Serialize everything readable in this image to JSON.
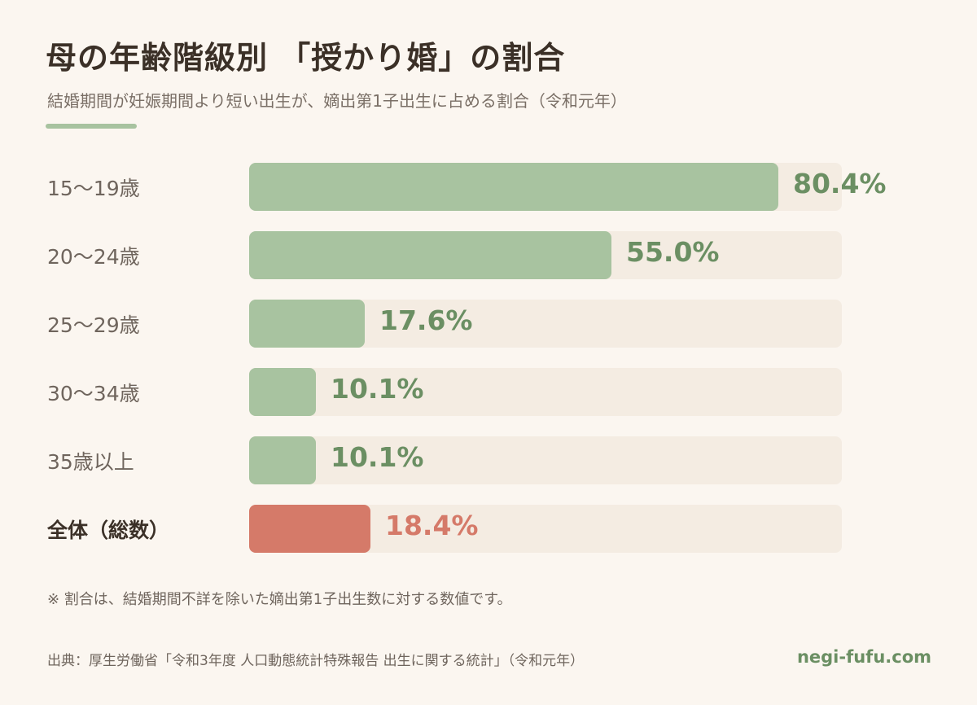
{
  "title": "母の年齢階級別 「授かり婚」の割合",
  "subtitle": "結婚期間が妊娠期間より短い出生が、嫡出第1子出生に占める割合（令和元年）",
  "colors": {
    "accent": "#a8c3a0",
    "bar": "#a8c3a0",
    "bar_highlight": "#d57a69",
    "value_text": "#6b8f63",
    "value_highlight": "#d57a69",
    "track": "#f4ece2"
  },
  "chart_data": {
    "type": "bar",
    "orientation": "horizontal",
    "categories": [
      "15〜19歳",
      "20〜24歳",
      "25〜29歳",
      "30〜34歳",
      "35歳以上",
      "全体（総数）"
    ],
    "values": [
      80.4,
      55.0,
      17.6,
      10.1,
      10.1,
      18.4
    ],
    "value_labels": [
      "80.4%",
      "55.0%",
      "17.6%",
      "10.1%",
      "10.1%",
      "18.4%"
    ],
    "highlight": "全体（総数）",
    "xlim": [
      0,
      90
    ]
  },
  "note": "※ 割合は、結婚期間不詳を除いた嫡出第1子出生数に対する数値です。",
  "source": "出典：厚生労働省「令和3年度 人口動態統計特殊報告 出生に関する統計」（令和元年）",
  "brand": "negi-fufu.com"
}
